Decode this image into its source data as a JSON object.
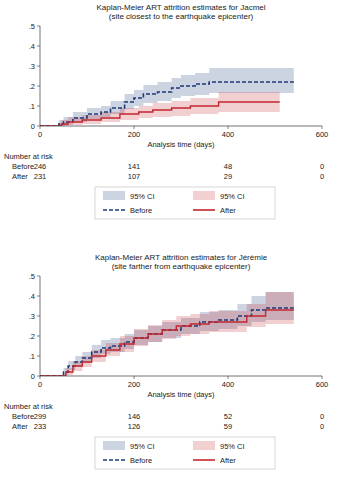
{
  "chart_data": [
    {
      "type": "line",
      "line_style": "step",
      "title": "Kaplan-Meier ART attrition estimates for Jacmel",
      "subtitle": "(site closest to the earthquake epicenter)",
      "x_label": "Analysis time (days)",
      "xlim": [
        0,
        600
      ],
      "xticks": [
        0,
        200,
        400,
        600
      ],
      "ylim": [
        0,
        0.5
      ],
      "yticks": [
        0,
        {
          "value": 0.1,
          "label": ".1"
        },
        {
          "value": 0.2,
          "label": ".2"
        },
        {
          "value": 0.3,
          "label": ".3"
        },
        {
          "value": 0.4,
          "label": ".4"
        },
        {
          "value": 0.5,
          "label": ".5"
        }
      ],
      "grid": false,
      "legend": "bottom",
      "series": [
        {
          "name": "Before",
          "color": "#1c3a78",
          "line_style": "dashed",
          "ci_label": "95% CI",
          "x": [
            0,
            40,
            50,
            70,
            100,
            130,
            150,
            180,
            200,
            220,
            250,
            280,
            300,
            330,
            360,
            540
          ],
          "values": [
            0,
            0.01,
            0.02,
            0.04,
            0.06,
            0.07,
            0.09,
            0.12,
            0.14,
            0.16,
            0.17,
            0.19,
            0.2,
            0.21,
            0.22,
            0.22
          ],
          "ci_lower": [
            0,
            0,
            0.005,
            0.02,
            0.035,
            0.045,
            0.06,
            0.085,
            0.1,
            0.115,
            0.125,
            0.14,
            0.15,
            0.155,
            0.165,
            0.165
          ],
          "ci_upper": [
            0,
            0.03,
            0.045,
            0.07,
            0.09,
            0.1,
            0.125,
            0.16,
            0.18,
            0.205,
            0.22,
            0.24,
            0.255,
            0.265,
            0.29,
            0.295
          ]
        },
        {
          "name": "After",
          "color": "#c4262e",
          "line_style": "solid",
          "ci_label": "95% CI",
          "x": [
            0,
            45,
            60,
            90,
            130,
            170,
            210,
            240,
            280,
            320,
            380,
            510
          ],
          "values": [
            0,
            0.01,
            0.02,
            0.03,
            0.04,
            0.06,
            0.07,
            0.08,
            0.09,
            0.1,
            0.12,
            0.12
          ],
          "ci_lower": [
            0,
            0,
            0.005,
            0.01,
            0.02,
            0.03,
            0.04,
            0.045,
            0.05,
            0.06,
            0.07,
            0.07
          ],
          "ci_upper": [
            0,
            0.03,
            0.045,
            0.055,
            0.07,
            0.09,
            0.1,
            0.115,
            0.125,
            0.14,
            0.17,
            0.17
          ]
        }
      ],
      "risk_table": {
        "title": "Number at risk",
        "x": [
          0,
          200,
          400,
          600
        ],
        "rows": [
          {
            "name": "Before",
            "values": [
              246,
              141,
              48,
              0
            ]
          },
          {
            "name": "After",
            "values": [
              231,
              107,
              29,
              0
            ]
          }
        ]
      }
    },
    {
      "type": "line",
      "line_style": "step",
      "title": "Kaplan-Meier ART attrition estimates for Jérémie",
      "subtitle": "(site farther from earthquake epicenter)",
      "x_label": "Analysis time (days)",
      "xlim": [
        0,
        600
      ],
      "xticks": [
        0,
        200,
        400,
        600
      ],
      "ylim": [
        0,
        0.5
      ],
      "yticks": [
        0,
        {
          "value": 0.1,
          "label": ".1"
        },
        {
          "value": 0.2,
          "label": ".2"
        },
        {
          "value": 0.3,
          "label": ".3"
        },
        {
          "value": 0.4,
          "label": ".4"
        },
        {
          "value": 0.5,
          "label": ".5"
        }
      ],
      "grid": false,
      "legend": "bottom",
      "series": [
        {
          "name": "Before",
          "color": "#1c3a78",
          "line_style": "dashed",
          "ci_label": "95% CI",
          "x": [
            0,
            50,
            60,
            75,
            90,
            110,
            130,
            150,
            180,
            200,
            230,
            260,
            300,
            340,
            380,
            420,
            450,
            480,
            540
          ],
          "values": [
            0,
            0.02,
            0.05,
            0.07,
            0.09,
            0.12,
            0.14,
            0.15,
            0.17,
            0.19,
            0.21,
            0.23,
            0.25,
            0.27,
            0.28,
            0.3,
            0.33,
            0.34,
            0.34
          ],
          "ci_lower": [
            0,
            0.005,
            0.03,
            0.045,
            0.065,
            0.09,
            0.11,
            0.12,
            0.135,
            0.155,
            0.17,
            0.19,
            0.21,
            0.225,
            0.235,
            0.25,
            0.27,
            0.28,
            0.28
          ],
          "ci_upper": [
            0,
            0.04,
            0.075,
            0.1,
            0.12,
            0.155,
            0.18,
            0.19,
            0.21,
            0.23,
            0.25,
            0.27,
            0.29,
            0.32,
            0.33,
            0.36,
            0.4,
            0.42,
            0.42
          ]
        },
        {
          "name": "After",
          "color": "#c4262e",
          "line_style": "solid",
          "ci_label": "95% CI",
          "x": [
            0,
            55,
            70,
            90,
            110,
            140,
            170,
            200,
            230,
            260,
            290,
            320,
            360,
            440,
            480,
            540
          ],
          "values": [
            0,
            0.02,
            0.05,
            0.07,
            0.1,
            0.13,
            0.16,
            0.19,
            0.21,
            0.23,
            0.25,
            0.26,
            0.27,
            0.3,
            0.33,
            0.33
          ],
          "ci_lower": [
            0,
            0.005,
            0.025,
            0.045,
            0.07,
            0.1,
            0.12,
            0.15,
            0.17,
            0.185,
            0.2,
            0.21,
            0.22,
            0.245,
            0.26,
            0.26
          ],
          "ci_upper": [
            0,
            0.04,
            0.075,
            0.1,
            0.13,
            0.165,
            0.2,
            0.235,
            0.255,
            0.28,
            0.3,
            0.31,
            0.325,
            0.36,
            0.42,
            0.42
          ]
        }
      ],
      "risk_table": {
        "title": "Number at risk",
        "x": [
          0,
          200,
          400,
          600
        ],
        "rows": [
          {
            "name": "Before",
            "values": [
              299,
              146,
              52,
              0
            ]
          },
          {
            "name": "After",
            "values": [
              233,
              126,
              59,
              0
            ]
          }
        ]
      }
    }
  ]
}
